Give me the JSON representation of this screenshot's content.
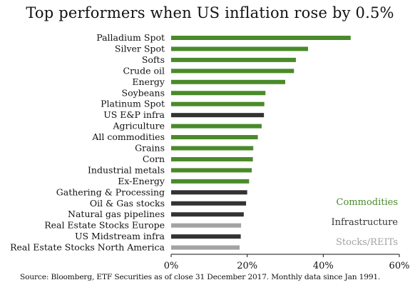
{
  "chart_data": {
    "type": "bar",
    "orientation": "horizontal",
    "title": "Top performers when US inflation rose by 0.5%",
    "categories": [
      "Palladium Spot",
      "Silver Spot",
      "Softs",
      "Crude oil",
      "Energy",
      "Soybeans",
      "Platinum Spot",
      "US E&P infra",
      "Agriculture",
      "All commodities",
      "Grains",
      "Corn",
      "Industrial metals",
      "Ex-Energy",
      "Gathering & Processing",
      "Oil & Gas stocks",
      "Natural gas pipelines",
      "Real Estate Stocks Europe",
      "US Midstream infra",
      "Real Estate Stocks North America"
    ],
    "values": [
      47.2,
      36.0,
      32.8,
      32.3,
      30.0,
      24.8,
      24.5,
      24.4,
      23.8,
      22.8,
      21.6,
      21.5,
      21.2,
      20.5,
      20.0,
      19.7,
      19.1,
      18.4,
      18.3,
      18.0
    ],
    "groups": [
      "Commodities",
      "Commodities",
      "Commodities",
      "Commodities",
      "Commodities",
      "Commodities",
      "Commodities",
      "Infrastructure",
      "Commodities",
      "Commodities",
      "Commodities",
      "Commodities",
      "Commodities",
      "Commodities",
      "Infrastructure",
      "Infrastructure",
      "Infrastructure",
      "Stocks/REITs",
      "Infrastructure",
      "Stocks/REITs"
    ],
    "xlim": [
      0,
      60
    ],
    "xticks": [
      0,
      20,
      40,
      60
    ],
    "xtick_labels": [
      "0%",
      "20%",
      "40%",
      "60%"
    ],
    "grid": false,
    "legend": {
      "placement": "bottom-right",
      "items": [
        {
          "name": "Commodities",
          "color": "#4a8a2a"
        },
        {
          "name": "Infrastructure",
          "color": "#333333"
        },
        {
          "name": "Stocks/REITs",
          "color": "#a3a3a3"
        }
      ]
    }
  },
  "source": "Source: Bloomberg, ETF Securities as of close 31 December 2017. Monthly data since Jan 1991."
}
